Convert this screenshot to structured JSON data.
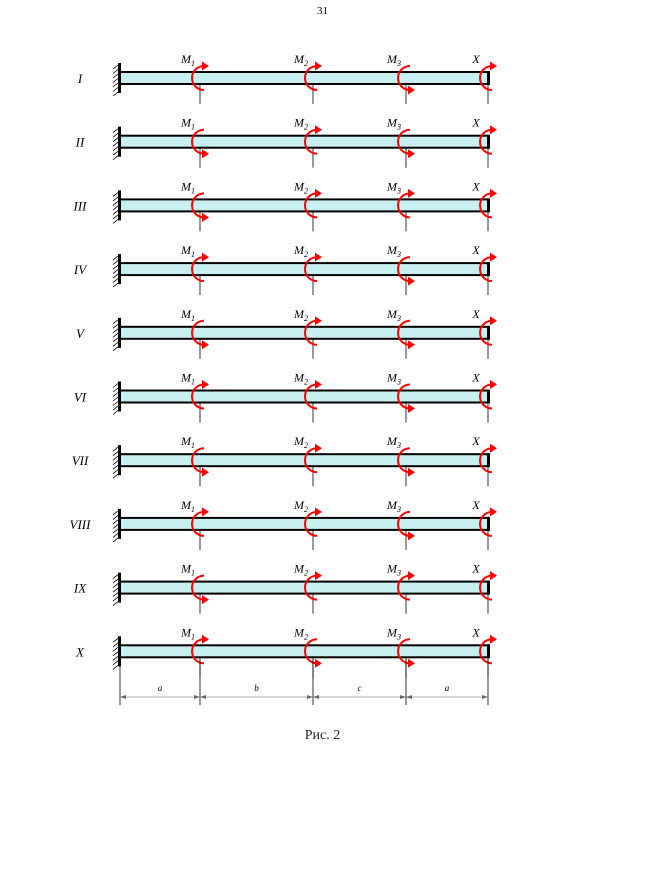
{
  "page": {
    "number": "31",
    "caption": "Рис. 2"
  },
  "colors": {
    "beam_fill": "#c8f0f0",
    "moment_arrow": "#ff0000",
    "line": "#000000"
  },
  "moment_labels": [
    {
      "letter": "M",
      "sub": "1"
    },
    {
      "letter": "M",
      "sub": "2"
    },
    {
      "letter": "M",
      "sub": "3"
    },
    {
      "letter": "X",
      "sub": ""
    }
  ],
  "dimensions": [
    "a",
    "b",
    "c",
    "a"
  ],
  "schemes": [
    {
      "label": "I",
      "directions": [
        "cw",
        "cw",
        "ccw",
        "cw"
      ],
      "end_bar": true
    },
    {
      "label": "II",
      "directions": [
        "ccw",
        "cw",
        "ccw",
        "cw"
      ],
      "end_bar": true
    },
    {
      "label": "III",
      "directions": [
        "ccw",
        "cw",
        "cw",
        "cw"
      ],
      "end_bar": true
    },
    {
      "label": "IV",
      "directions": [
        "cw",
        "cw",
        "ccw",
        "cw"
      ],
      "end_bar": true
    },
    {
      "label": "V",
      "directions": [
        "ccw",
        "cw",
        "ccw",
        "cw"
      ],
      "end_bar": true
    },
    {
      "label": "VI",
      "directions": [
        "cw",
        "cw",
        "ccw",
        "cw"
      ],
      "end_bar": true
    },
    {
      "label": "VII",
      "directions": [
        "ccw",
        "cw",
        "ccw",
        "cw"
      ],
      "end_bar": true
    },
    {
      "label": "VIII",
      "directions": [
        "cw",
        "cw",
        "ccw",
        "cw"
      ],
      "end_bar": true
    },
    {
      "label": "IX",
      "directions": [
        "ccw",
        "cw",
        "cw",
        "cw"
      ],
      "end_bar": true
    },
    {
      "label": "X",
      "directions": [
        "cw",
        "ccw",
        "ccw",
        "cw"
      ],
      "end_bar": true
    }
  ]
}
